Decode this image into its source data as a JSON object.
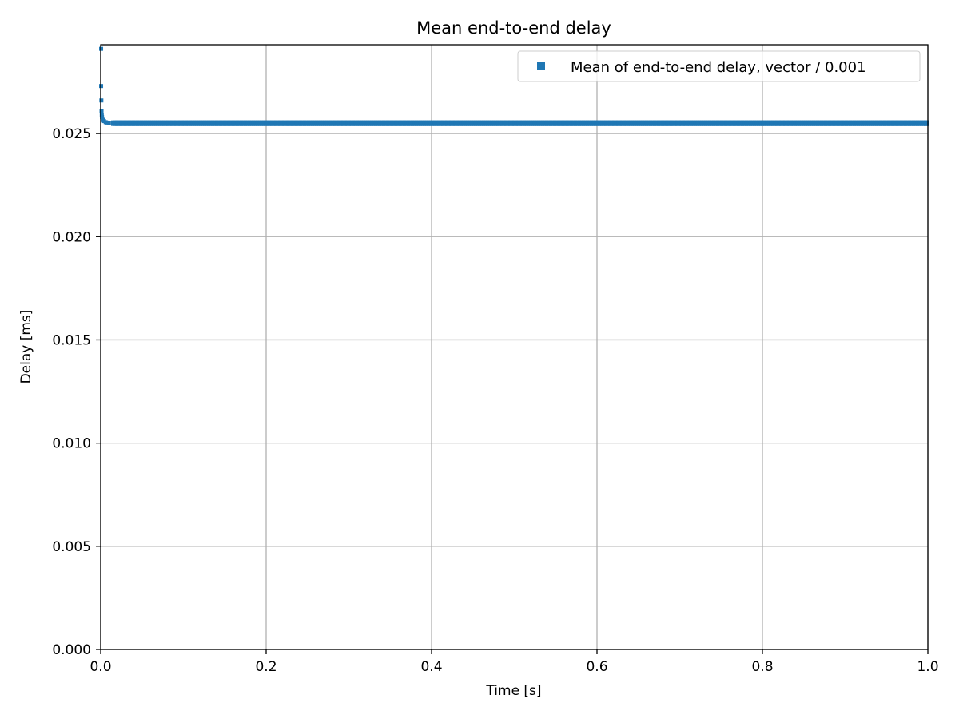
{
  "chart_data": {
    "type": "scatter",
    "title": "Mean end-to-end delay",
    "xlabel": "Time [s]",
    "ylabel": "Delay [ms]",
    "xlim": [
      0,
      1.0
    ],
    "ylim": [
      0,
      0.0293
    ],
    "xticks": [
      0.0,
      0.2,
      0.4,
      0.6,
      0.8,
      1.0
    ],
    "xtick_labels": [
      "0.0",
      "0.2",
      "0.4",
      "0.6",
      "0.8",
      "1.0"
    ],
    "yticks": [
      0.0,
      0.005,
      0.01,
      0.015,
      0.02,
      0.025
    ],
    "ytick_labels": [
      "0.000",
      "0.005",
      "0.010",
      "0.015",
      "0.020",
      "0.025"
    ],
    "grid": true,
    "legend": {
      "position": "top-right"
    },
    "series": [
      {
        "name": "Mean of end-to-end delay, vector / 0.001",
        "color": "#1f77b4",
        "marker": "square",
        "initial_points": [
          {
            "x": 0.0005,
            "y": 0.0291
          },
          {
            "x": 0.0005,
            "y": 0.0273
          },
          {
            "x": 0.0008,
            "y": 0.0266
          },
          {
            "x": 0.001,
            "y": 0.0261
          },
          {
            "x": 0.0013,
            "y": 0.0259
          },
          {
            "x": 0.0016,
            "y": 0.0258
          },
          {
            "x": 0.002,
            "y": 0.0257
          },
          {
            "x": 0.003,
            "y": 0.02565
          },
          {
            "x": 0.004,
            "y": 0.0256
          },
          {
            "x": 0.006,
            "y": 0.02555
          },
          {
            "x": 0.008,
            "y": 0.02553
          },
          {
            "x": 0.01,
            "y": 0.02552
          },
          {
            "x": 0.015,
            "y": 0.0255
          }
        ],
        "steady_value": 0.0255,
        "steady_x_range": [
          0.015,
          1.0
        ]
      }
    ]
  }
}
